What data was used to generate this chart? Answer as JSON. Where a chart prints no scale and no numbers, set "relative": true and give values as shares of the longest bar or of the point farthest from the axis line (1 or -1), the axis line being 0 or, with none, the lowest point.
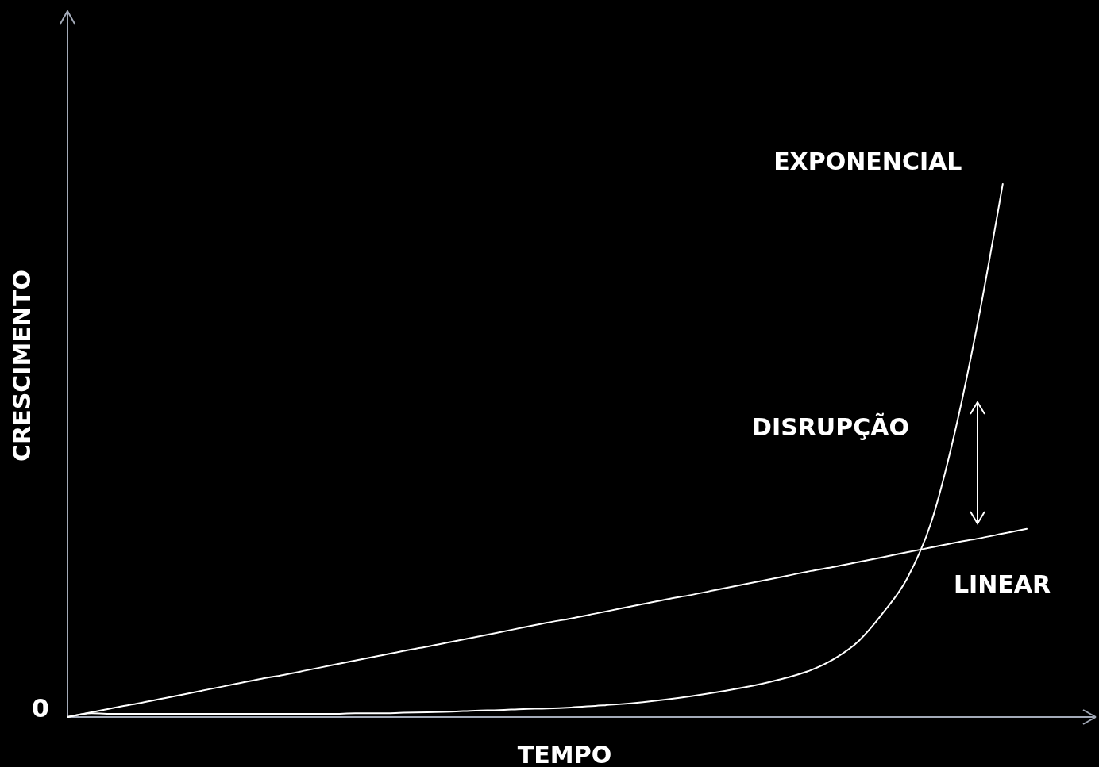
{
  "chart_data": {
    "type": "line",
    "relative": true,
    "xlabel": "TEMPO",
    "ylabel": "CRESCIMENTO",
    "categories": [
      null,
      null,
      null,
      null,
      null,
      null,
      null,
      null,
      null,
      null,
      null,
      null,
      null,
      null,
      null,
      null,
      null,
      null,
      null,
      null,
      null,
      null,
      null,
      null,
      null,
      null,
      null,
      null,
      null,
      null,
      null,
      null,
      null,
      null,
      null,
      null,
      null,
      null,
      null,
      null,
      null
    ],
    "series": [
      {
        "name": "EXPONENCIAL",
        "color": "#ffffff",
        "values": [
          0,
          0.007,
          0.006,
          0.006,
          0.006,
          0.006,
          0.006,
          0.006,
          0.006,
          0.006,
          0.006,
          0.006,
          0.007,
          0.007,
          0.008,
          0.009,
          0.01,
          0.012,
          0.013,
          0.015,
          0.016,
          0.018,
          0.021,
          0.024,
          0.028,
          0.033,
          0.039,
          0.046,
          0.054,
          0.063,
          0.074,
          0.088,
          0.11,
          0.143,
          0.195,
          0.259,
          0.363,
          0.534,
          0.75,
          1,
          null
        ]
      },
      {
        "name": "LINEAR",
        "color": "#ffffff",
        "values": [
          0,
          0.009,
          0.018,
          0.026,
          0.035,
          0.044,
          0.053,
          0.062,
          0.071,
          0.079,
          0.088,
          0.097,
          0.106,
          0.115,
          0.124,
          0.132,
          0.141,
          0.15,
          0.159,
          0.168,
          0.177,
          0.185,
          0.194,
          0.203,
          0.212,
          0.221,
          0.229,
          0.238,
          0.247,
          0.256,
          0.265,
          0.274,
          0.282,
          0.291,
          0.3,
          0.309,
          0.318,
          0.327,
          0.335,
          0.344,
          0.353
        ]
      }
    ],
    "annotations": [
      "DISRUPÇÃO",
      "0"
    ]
  }
}
